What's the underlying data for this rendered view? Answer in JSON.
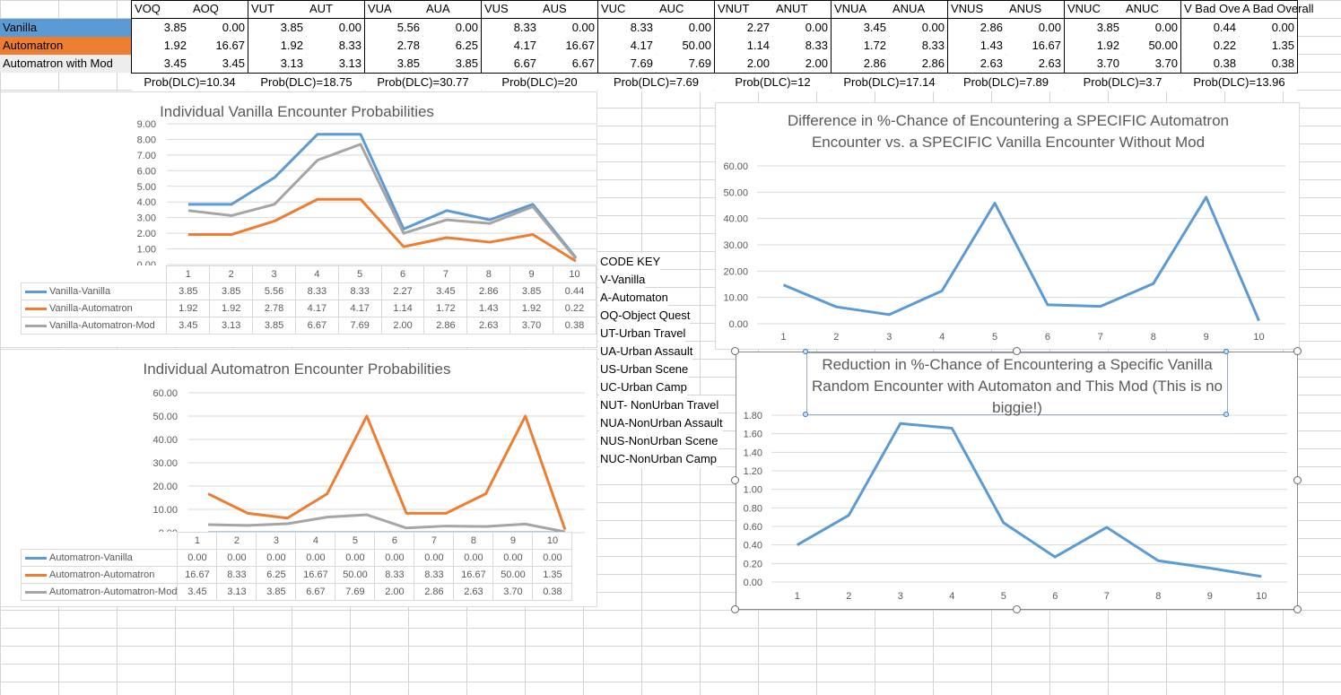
{
  "colors": {
    "vanilla_fill": "#5b9bd5",
    "automatron_fill": "#ed7d31",
    "mod_fill": "#ededed",
    "series_blue": "#5b9bd5",
    "series_orange": "#ed7d31",
    "series_gray": "#a5a5a5"
  },
  "table": {
    "columns": [
      "VOQ",
      "AOQ",
      "VUT",
      "AUT",
      "VUA",
      "AUA",
      "VUS",
      "AUS",
      "VUC",
      "AUC",
      "VNUT",
      "ANUT",
      "VNUA",
      "ANUA",
      "VNUS",
      "ANUS",
      "VNUC",
      "ANUC",
      "V Bad Ove",
      "A Bad Overall"
    ],
    "rows": [
      {
        "label": "Vanilla",
        "values": [
          "3.85",
          "0.00",
          "3.85",
          "0.00",
          "5.56",
          "0.00",
          "8.33",
          "0.00",
          "8.33",
          "0.00",
          "2.27",
          "0.00",
          "3.45",
          "0.00",
          "2.86",
          "0.00",
          "3.85",
          "0.00",
          "0.44",
          "0.00"
        ]
      },
      {
        "label": "Automatron",
        "values": [
          "1.92",
          "16.67",
          "1.92",
          "8.33",
          "2.78",
          "6.25",
          "4.17",
          "16.67",
          "4.17",
          "50.00",
          "1.14",
          "8.33",
          "1.72",
          "8.33",
          "1.43",
          "16.67",
          "1.92",
          "50.00",
          "0.22",
          "1.35"
        ]
      },
      {
        "label": "Automatron with Mod",
        "values": [
          "3.45",
          "3.45",
          "3.13",
          "3.13",
          "3.85",
          "3.85",
          "6.67",
          "6.67",
          "7.69",
          "7.69",
          "2.00",
          "2.00",
          "2.86",
          "2.86",
          "2.63",
          "2.63",
          "3.70",
          "3.70",
          "0.38",
          "0.38"
        ]
      }
    ],
    "prob_dlc": [
      "Prob(DLC)=10.34",
      "Prob(DLC)=18.75",
      "Prob(DLC)=30.77",
      "Prob(DLC)=20",
      "Prob(DLC)=7.69",
      "Prob(DLC)=12",
      "Prob(DLC)=17.14",
      "Prob(DLC)=7.89",
      "Prob(DLC)=3.7",
      "Prob(DLC)=13.96"
    ]
  },
  "code_key": [
    "CODE KEY",
    "V-Vanilla",
    "A-Automaton",
    "OQ-Object Quest",
    "UT-Urban Travel",
    "UA-Urban Assault",
    "US-Urban Scene",
    "UC-Urban Camp",
    "NUT- NonUrban Travel",
    "NUA-NonUrban Assault",
    "NUS-NonUrban Scene",
    "NUC-NonUrban Camp"
  ],
  "chart_data": [
    {
      "type": "line",
      "title": "Individual Vanilla Encounter Probabilities",
      "categories": [
        "1",
        "2",
        "3",
        "4",
        "5",
        "6",
        "7",
        "8",
        "9",
        "10"
      ],
      "ylim": [
        0,
        9
      ],
      "yticks": [
        "0.00",
        "1.00",
        "2.00",
        "3.00",
        "4.00",
        "5.00",
        "6.00",
        "7.00",
        "8.00",
        "9.00"
      ],
      "series": [
        {
          "name": "Vanilla-Vanilla",
          "color": "#5b9bd5",
          "values": [
            3.85,
            3.85,
            5.56,
            8.33,
            8.33,
            2.27,
            3.45,
            2.86,
            3.85,
            0.44
          ],
          "labels": [
            "3.85",
            "3.85",
            "5.56",
            "8.33",
            "8.33",
            "2.27",
            "3.45",
            "2.86",
            "3.85",
            "0.44"
          ]
        },
        {
          "name": "Vanilla-Automatron",
          "color": "#ed7d31",
          "values": [
            1.92,
            1.92,
            2.78,
            4.17,
            4.17,
            1.14,
            1.72,
            1.43,
            1.92,
            0.22
          ],
          "labels": [
            "1.92",
            "1.92",
            "2.78",
            "4.17",
            "4.17",
            "1.14",
            "1.72",
            "1.43",
            "1.92",
            "0.22"
          ]
        },
        {
          "name": "Vanilla-Automatron-Mod",
          "color": "#a5a5a5",
          "values": [
            3.45,
            3.13,
            3.85,
            6.67,
            7.69,
            2.0,
            2.86,
            2.63,
            3.7,
            0.38
          ],
          "labels": [
            "3.45",
            "3.13",
            "3.85",
            "6.67",
            "7.69",
            "2.00",
            "2.86",
            "2.63",
            "3.70",
            "0.38"
          ]
        }
      ]
    },
    {
      "type": "line",
      "title": "Individual Automatron Encounter Probabilities",
      "categories": [
        "1",
        "2",
        "3",
        "4",
        "5",
        "6",
        "7",
        "8",
        "9",
        "10"
      ],
      "ylim": [
        0,
        60
      ],
      "yticks": [
        "0.00",
        "10.00",
        "20.00",
        "30.00",
        "40.00",
        "50.00",
        "60.00"
      ],
      "series": [
        {
          "name": "Automatron-Vanilla",
          "color": "#5b9bd5",
          "values": [
            0,
            0,
            0,
            0,
            0,
            0,
            0,
            0,
            0,
            0
          ],
          "labels": [
            "0.00",
            "0.00",
            "0.00",
            "0.00",
            "0.00",
            "0.00",
            "0.00",
            "0.00",
            "0.00",
            "0.00"
          ]
        },
        {
          "name": "Automatron-Automatron",
          "color": "#ed7d31",
          "values": [
            16.67,
            8.33,
            6.25,
            16.67,
            50.0,
            8.33,
            8.33,
            16.67,
            50.0,
            1.35
          ],
          "labels": [
            "16.67",
            "8.33",
            "6.25",
            "16.67",
            "50.00",
            "8.33",
            "8.33",
            "16.67",
            "50.00",
            "1.35"
          ]
        },
        {
          "name": "Automatron-Automatron-Mod",
          "color": "#a5a5a5",
          "values": [
            3.45,
            3.13,
            3.85,
            6.67,
            7.69,
            2.0,
            2.86,
            2.63,
            3.7,
            0.38
          ],
          "labels": [
            "3.45",
            "3.13",
            "3.85",
            "6.67",
            "7.69",
            "2.00",
            "2.86",
            "2.63",
            "3.70",
            "0.38"
          ]
        }
      ]
    },
    {
      "type": "line",
      "title": "Difference in %-Chance of Encountering a SPECIFIC Automatron Encounter vs. a SPECIFIC Vanilla Encounter Without Mod",
      "categories": [
        "1",
        "2",
        "3",
        "4",
        "5",
        "6",
        "7",
        "8",
        "9",
        "10"
      ],
      "ylim": [
        0,
        60
      ],
      "yticks": [
        "0.00",
        "10.00",
        "20.00",
        "30.00",
        "40.00",
        "50.00",
        "60.00"
      ],
      "series": [
        {
          "color": "#5b9bd5",
          "values": [
            14.75,
            6.41,
            3.47,
            12.5,
            45.83,
            7.19,
            6.61,
            15.24,
            48.08,
            1.13
          ]
        }
      ]
    },
    {
      "type": "line",
      "title": "Reduction in %-Chance of Encountering a Specific Vanilla Random Encounter with Automaton and This Mod (This is no biggie!)",
      "categories": [
        "1",
        "2",
        "3",
        "4",
        "5",
        "6",
        "7",
        "8",
        "9",
        "10"
      ],
      "ylim": [
        0,
        1.8
      ],
      "yticks": [
        "0.00",
        "0.20",
        "0.40",
        "0.60",
        "0.80",
        "1.00",
        "1.20",
        "1.40",
        "1.60",
        "1.80"
      ],
      "series": [
        {
          "color": "#5b9bd5",
          "values": [
            0.4,
            0.72,
            1.71,
            1.66,
            0.64,
            0.27,
            0.59,
            0.23,
            0.15,
            0.06
          ]
        }
      ]
    }
  ]
}
